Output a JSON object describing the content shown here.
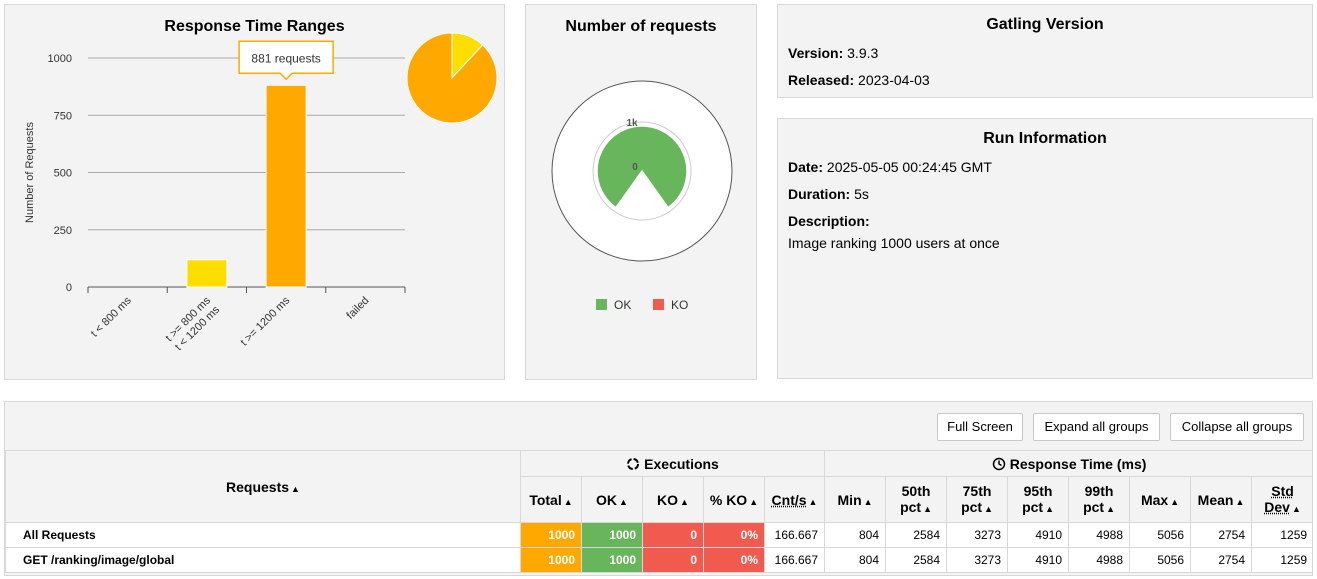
{
  "response_time_ranges": {
    "title": "Response Time Ranges",
    "tooltip": "881 requests",
    "chart_data": {
      "type": "bar",
      "title": "Response Time Ranges",
      "ylabel": "Number of Requests",
      "categories": [
        "t < 800 ms",
        "t >= 800 ms\nt < 1200 ms",
        "t >= 1200 ms",
        "failed"
      ],
      "category_lines": [
        [
          "t < 800 ms"
        ],
        [
          "t >= 800 ms",
          "t < 1200 ms"
        ],
        [
          "t >= 1200 ms"
        ],
        [
          "failed"
        ]
      ],
      "values": [
        0,
        119,
        881,
        0
      ],
      "colors": [
        "#68b65c",
        "#ffdd00",
        "#ffa900",
        "#f15b4f"
      ],
      "yticks": [
        "0",
        "250",
        "500",
        "750",
        "1000"
      ],
      "ylim": [
        0,
        1000
      ],
      "grid": true
    },
    "pie": {
      "type": "pie",
      "values": [
        119,
        881
      ],
      "colors": [
        "#ffdd00",
        "#ffa900"
      ]
    }
  },
  "number_of_requests": {
    "title": "Number of requests",
    "chart_data": {
      "type": "pie",
      "values": [
        1000,
        0
      ],
      "series_names": [
        "OK",
        "KO"
      ],
      "colors": [
        "#68b65c",
        "#f15b4f"
      ],
      "scale_labels": [
        "1k",
        "0"
      ]
    },
    "legend": [
      {
        "label": "OK",
        "color": "#68b65c"
      },
      {
        "label": "KO",
        "color": "#f15b4f"
      }
    ]
  },
  "gatling_version": {
    "title": "Gatling Version",
    "version_label": "Version:",
    "version": "3.9.3",
    "released_label": "Released:",
    "released": "2023-04-03"
  },
  "run_information": {
    "title": "Run Information",
    "date_label": "Date:",
    "date": "2025-05-05 00:24:45 GMT",
    "duration_label": "Duration:",
    "duration": "5s",
    "description_label": "Description:",
    "description": "Image ranking 1000 users at once"
  },
  "toolbar": {
    "full_screen": "Full Screen",
    "expand_all": "Expand all groups",
    "collapse_all": "Collapse all groups"
  },
  "stats_table": {
    "requests_header": "Requests",
    "executions_header": "Executions",
    "response_time_header": "Response Time (ms)",
    "columns": {
      "total": "Total",
      "ok": "OK",
      "ko": "KO",
      "pct_ko": "% KO",
      "cnt_s": "Cnt/s",
      "min": "Min",
      "p50_a": "50th",
      "p50_b": "pct",
      "p75_a": "75th",
      "p75_b": "pct",
      "p95_a": "95th",
      "p95_b": "pct",
      "p99_a": "99th",
      "p99_b": "pct",
      "max": "Max",
      "mean": "Mean",
      "std_a": "Std",
      "std_b": "Dev"
    },
    "rows": [
      {
        "name": "All Requests",
        "total": "1000",
        "ok": "1000",
        "ko": "0",
        "pct_ko": "0%",
        "cnt_s": "166.667",
        "min": "804",
        "p50": "2584",
        "p75": "3273",
        "p95": "4910",
        "p99": "4988",
        "max": "5056",
        "mean": "2754",
        "std": "1259"
      },
      {
        "name": "GET /ranking/image/global",
        "total": "1000",
        "ok": "1000",
        "ko": "0",
        "pct_ko": "0%",
        "cnt_s": "166.667",
        "min": "804",
        "p50": "2584",
        "p75": "3273",
        "p95": "4910",
        "p99": "4988",
        "max": "5056",
        "mean": "2754",
        "std": "1259"
      }
    ]
  }
}
